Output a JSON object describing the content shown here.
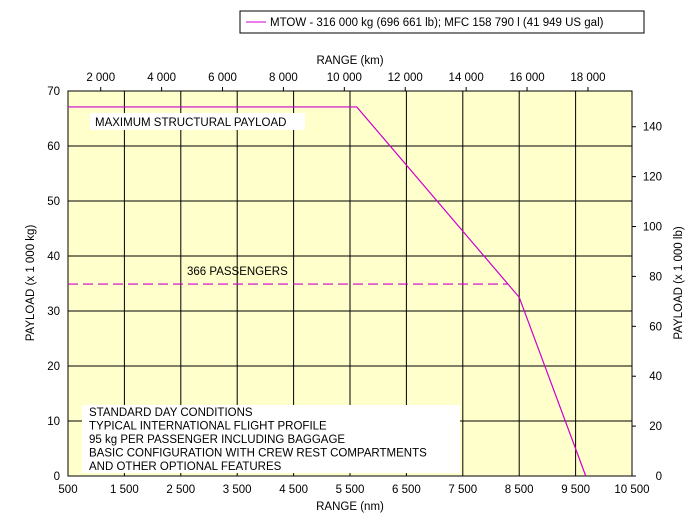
{
  "chart_data": {
    "type": "line",
    "legend": "MTOW - 316 000 kg (696 661 lb); MFC 158 790 l (41 949 US gal)",
    "legend_placement": "top",
    "xlabel": "RANGE (nm)",
    "x2label": "RANGE (km)",
    "ylabel": "PAYLOAD (x 1 000 kg)",
    "y2label": "PAYLOAD (x 1 000 lb)",
    "xlim": [
      500,
      10500
    ],
    "ylim": [
      0,
      70
    ],
    "xticks": [
      "500",
      "1 500",
      "2 500",
      "3 500",
      "4 500",
      "5 500",
      "6 500",
      "7 500",
      "8 500",
      "9 500",
      "10 500"
    ],
    "x2ticks": [
      2000,
      4000,
      6000,
      8000,
      10000,
      12000,
      14000,
      16000,
      18000
    ],
    "x2tick_labels": [
      "2 000",
      "4 000",
      "6 000",
      "8 000",
      "10 000",
      "12 000",
      "14 000",
      "16 000",
      "18 000"
    ],
    "yticks": [
      0,
      10,
      20,
      30,
      40,
      50,
      60,
      70
    ],
    "y2ticks": [
      0,
      20,
      40,
      60,
      80,
      100,
      120,
      140
    ],
    "grid": true,
    "background": "#ffffcc",
    "line_color": "#cc00cc",
    "series": [
      {
        "name": "MTOW - 316 000 kg (696 661 lb); MFC 158 790 l (41 949 US gal)",
        "x": [
          500,
          5620,
          8500,
          9680
        ],
        "y": [
          67.1,
          67.1,
          32.5,
          0
        ]
      }
    ],
    "passenger_line": {
      "x": [
        500,
        8290
      ],
      "y": [
        34.9,
        34.9
      ]
    },
    "annotations": {
      "max_payload": "MAXIMUM STRUCTURAL PAYLOAD",
      "passengers": "366 PASSENGERS",
      "notes": [
        "STANDARD DAY CONDITIONS",
        "TYPICAL INTERNATIONAL FLIGHT PROFILE",
        "95 kg PER PASSENGER INCLUDING BAGGAGE",
        "BASIC CONFIGURATION WITH CREW REST COMPARTMENTS",
        "AND OTHER OPTIONAL FEATURES"
      ]
    }
  }
}
